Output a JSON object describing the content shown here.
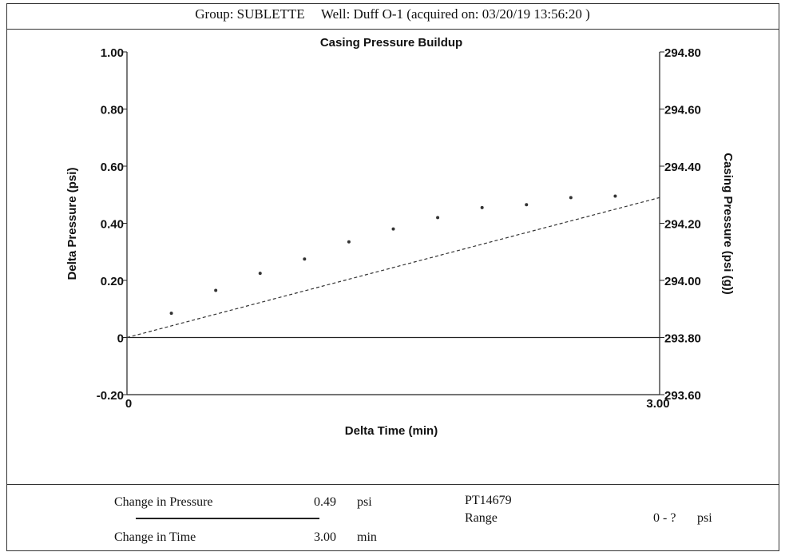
{
  "header": {
    "group": "Group: SUBLETTE",
    "well": "Well: Duff O-1 (acquired on: 03/20/19 13:56:20 )"
  },
  "chart_data": {
    "type": "scatter",
    "title": "Casing Pressure Buildup",
    "xlabel": "Delta Time (min)",
    "ylabel": "Delta Pressure (psi)",
    "y2label": "Casing Pressure (psi (g))",
    "xlim": [
      0,
      3.0
    ],
    "ylim": [
      -0.2,
      1.0
    ],
    "y2lim": [
      293.6,
      294.8
    ],
    "x_ticks": [
      "0",
      "3.00"
    ],
    "y_ticks": [
      {
        "value": 1.0,
        "label": "1.00"
      },
      {
        "value": 0.8,
        "label": "0.80"
      },
      {
        "value": 0.6,
        "label": "0.60"
      },
      {
        "value": 0.4,
        "label": "0.40"
      },
      {
        "value": 0.2,
        "label": "0.20"
      },
      {
        "value": 0.0,
        "label": "0"
      },
      {
        "value": -0.2,
        "label": "-0.20"
      }
    ],
    "y2_ticks": [
      {
        "value": 294.8,
        "label": "294.80"
      },
      {
        "value": 294.6,
        "label": "294.60"
      },
      {
        "value": 294.4,
        "label": "294.40"
      },
      {
        "value": 294.2,
        "label": "294.20"
      },
      {
        "value": 294.0,
        "label": "294.00"
      },
      {
        "value": 293.8,
        "label": "293.80"
      },
      {
        "value": 293.6,
        "label": "293.60"
      }
    ],
    "series": [
      {
        "type": "scatter",
        "x": [
          0.25,
          0.5,
          0.75,
          1.0,
          1.25,
          1.5,
          1.75,
          2.0,
          2.25,
          2.5,
          2.75
        ],
        "y": [
          0.085,
          0.165,
          0.225,
          0.275,
          0.335,
          0.38,
          0.42,
          0.455,
          0.465,
          0.49,
          0.495
        ]
      },
      {
        "type": "line",
        "style": "dashed",
        "x": [
          0,
          3.0
        ],
        "y": [
          0,
          0.49
        ]
      }
    ],
    "zero_line": 0,
    "grid": false
  },
  "footer": {
    "change_pressure_label": "Change in Pressure",
    "change_pressure_value": "0.49",
    "change_pressure_unit": "psi",
    "change_time_label": "Change in Time",
    "change_time_value": "3.00",
    "change_time_unit": "min",
    "sensor_id": "PT14679",
    "range_label": "Range",
    "range_value": "0 - ?",
    "range_unit": "psi"
  }
}
